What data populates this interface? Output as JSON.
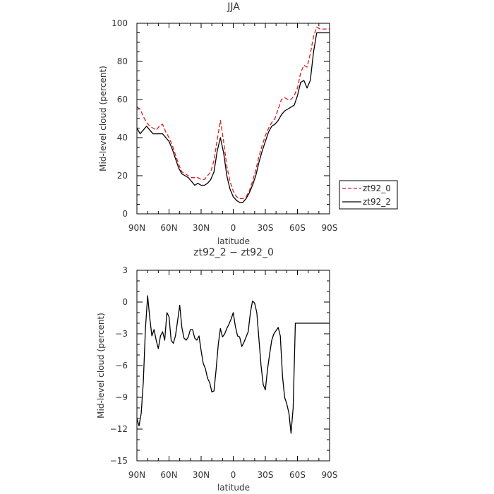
{
  "chart_data": [
    {
      "type": "line",
      "title": "JJA",
      "xlabel": "latitude",
      "ylabel": "Mid-level cloud (percent)",
      "x_ticks": [
        "90N",
        "60N",
        "30N",
        "0",
        "30S",
        "60S",
        "90S"
      ],
      "y_ticks": [
        "0",
        "20",
        "40",
        "60",
        "80",
        "100"
      ],
      "xlim": [
        -90,
        90
      ],
      "ylim": [
        0,
        100
      ],
      "legend_position": "right",
      "series": [
        {
          "name": "zt92_0",
          "color": "#e31a1c",
          "dash": "dashed",
          "x": [
            -90,
            -87,
            -84,
            -81,
            -78,
            -75,
            -72,
            -69,
            -66,
            -63,
            -60,
            -57,
            -54,
            -51,
            -48,
            -45,
            -42,
            -39,
            -36,
            -33,
            -30,
            -27,
            -24,
            -21,
            -18,
            -15,
            -12,
            -9,
            -6,
            -3,
            0,
            3,
            6,
            9,
            12,
            15,
            18,
            21,
            24,
            27,
            30,
            33,
            36,
            39,
            42,
            45,
            48,
            51,
            54,
            57,
            60,
            63,
            66,
            69,
            72,
            75,
            78,
            81,
            84,
            87,
            90
          ],
          "values": [
            56,
            55,
            51,
            48,
            46,
            45,
            44,
            46,
            47,
            43,
            40,
            36,
            31,
            26,
            22,
            21,
            20,
            19,
            19,
            19,
            18,
            18,
            20,
            22,
            28,
            39,
            49,
            38,
            25,
            17,
            12,
            9,
            8,
            8,
            9,
            12,
            17,
            23,
            30,
            36,
            41,
            45,
            48,
            50,
            55,
            60,
            61,
            60,
            60,
            62,
            66,
            74,
            78,
            77,
            84,
            93,
            98,
            97,
            97,
            97,
            97
          ]
        },
        {
          "name": "zt92_2",
          "color": "#000000",
          "dash": "solid",
          "x": [
            -90,
            -87,
            -84,
            -81,
            -78,
            -75,
            -72,
            -69,
            -66,
            -63,
            -60,
            -57,
            -54,
            -51,
            -48,
            -45,
            -42,
            -39,
            -36,
            -33,
            -30,
            -27,
            -24,
            -21,
            -18,
            -15,
            -12,
            -9,
            -6,
            -3,
            0,
            3,
            6,
            9,
            12,
            15,
            18,
            21,
            24,
            27,
            30,
            33,
            36,
            39,
            42,
            45,
            48,
            51,
            54,
            57,
            60,
            63,
            66,
            69,
            72,
            75,
            78,
            81,
            84,
            87,
            90
          ],
          "values": [
            45,
            42,
            44,
            46,
            44,
            42,
            42,
            42,
            42,
            40,
            38,
            34,
            29,
            24,
            21,
            20,
            19,
            17,
            15,
            16,
            15,
            15,
            16,
            18,
            22,
            33,
            40,
            32,
            20,
            13,
            9,
            7,
            6,
            6,
            8,
            11,
            15,
            20,
            27,
            33,
            38,
            43,
            46,
            47,
            49,
            52,
            54,
            55,
            56,
            57,
            62,
            69,
            70,
            66,
            70,
            85,
            95,
            95,
            95,
            95,
            95
          ]
        }
      ]
    },
    {
      "type": "line",
      "title": "zt92_2 − zt92_0",
      "xlabel": "latitude",
      "ylabel": "Mid-level cloud (percent)",
      "x_ticks": [
        "90N",
        "60N",
        "30N",
        "0",
        "30S",
        "60S",
        "90S"
      ],
      "y_ticks": [
        "3",
        "0",
        "−3",
        "−6",
        "−9",
        "−12",
        "−15"
      ],
      "xlim": [
        -90,
        90
      ],
      "ylim": [
        -15,
        3
      ],
      "series": [
        {
          "color": "#000000",
          "dash": "solid",
          "x": [
            -90,
            -88,
            -86,
            -84,
            -82,
            -80,
            -78,
            -76,
            -74,
            -72,
            -70,
            -68,
            -66,
            -64,
            -62,
            -60,
            -58,
            -56,
            -54,
            -52,
            -50,
            -48,
            -46,
            -44,
            -42,
            -40,
            -38,
            -36,
            -34,
            -32,
            -30,
            -28,
            -26,
            -24,
            -22,
            -20,
            -18,
            -16,
            -14,
            -12,
            -10,
            -8,
            -6,
            -4,
            -2,
            0,
            2,
            4,
            6,
            8,
            10,
            12,
            14,
            16,
            18,
            20,
            22,
            24,
            26,
            28,
            30,
            32,
            34,
            36,
            38,
            40,
            42,
            44,
            46,
            48,
            50,
            52,
            54,
            56,
            58,
            60,
            62,
            64,
            66,
            68,
            70,
            72,
            74,
            76,
            78,
            80,
            82,
            84,
            86,
            88,
            89,
            90
          ],
          "values": [
            -11,
            -11.7,
            -10.5,
            -7.5,
            -2.5,
            0.6,
            -1.5,
            -3.2,
            -2.6,
            -3.6,
            -4.4,
            -3.2,
            -2.8,
            -3.6,
            -1.0,
            -1.4,
            -3.6,
            -3.9,
            -3.2,
            -1.8,
            -0.3,
            -2.4,
            -3.4,
            -3.6,
            -3.3,
            -2.6,
            -2.6,
            -3.4,
            -3.6,
            -3.2,
            -4.6,
            -5.8,
            -6.3,
            -7.2,
            -7.6,
            -8.5,
            -8.4,
            -6.4,
            -4.0,
            -2.5,
            -3.3,
            -3.0,
            -2.5,
            -2.1,
            -1.6,
            -1.0,
            -2.3,
            -3.2,
            -3.3,
            -4.2,
            -3.8,
            -3.3,
            -2.8,
            -1.0,
            0.1,
            -0.1,
            -1.0,
            -3.5,
            -6.0,
            -7.8,
            -8.3,
            -6.4,
            -4.9,
            -3.6,
            -3.0,
            -2.7,
            -2.4,
            -3.2,
            -7.0,
            -9.0,
            -9.6,
            -10.5,
            -12.4,
            -10.0,
            -2.0,
            -2.0,
            -2.0,
            -2.0,
            -2.0,
            -2.0,
            -2.0,
            -2.0,
            -2.0,
            -2.0,
            -2.0,
            -2.0,
            -2.0,
            -2.0,
            -2.0,
            -2.0,
            -2.0,
            -2.0
          ]
        }
      ]
    }
  ]
}
